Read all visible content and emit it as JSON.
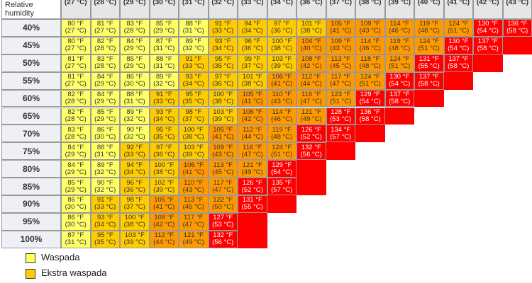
{
  "table": {
    "corner": "Relative humidity",
    "columns": [
      "(27 °C)",
      "(28 °C)",
      "(29 °C)",
      "(30 °C)",
      "(31 °C)",
      "(32 °C)",
      "(33 °C)",
      "(34 °C)",
      "(36 °C)",
      "(37 °C)",
      "(38 °C)",
      "(39 °C)",
      "(40 °C)",
      "(41 °C)",
      "(42 °C)",
      "(43 °C)"
    ],
    "color_scale": [
      {
        "min": 0,
        "color": "#ffff66",
        "text": "#333"
      },
      {
        "min": 91,
        "color": "#ffcc00",
        "text": "#333"
      },
      {
        "min": 104,
        "color": "#ff9900",
        "text": "#333"
      },
      {
        "min": 125,
        "color": "#ff0000",
        "text": "#fff"
      }
    ],
    "rows": [
      {
        "label": "40%",
        "cells": [
          [
            "80 °F",
            "(27 °C)"
          ],
          [
            "81 °F",
            "(27 °C)"
          ],
          [
            "83 °F",
            "(28 °C)"
          ],
          [
            "85 °F",
            "(29 °C)"
          ],
          [
            "88 °F",
            "(31 °C)"
          ],
          [
            "91 °F",
            "(33 °C)"
          ],
          [
            "94 °F",
            "(34 °C)"
          ],
          [
            "97 °F",
            "(36 °C)"
          ],
          [
            "101 °F",
            "(38 °C)"
          ],
          [
            "105 °F",
            "(41 °C)"
          ],
          [
            "109 °F",
            "(43 °C)"
          ],
          [
            "114 °F",
            "(46 °C)"
          ],
          [
            "119 °F",
            "(48 °C)"
          ],
          [
            "124 °F",
            "(51 °C)"
          ],
          [
            "130 °F",
            "(54 °C)"
          ],
          [
            "136 °F",
            "(58 °C)"
          ]
        ]
      },
      {
        "label": "45%",
        "cells": [
          [
            "80 °F",
            "(27 °C)"
          ],
          [
            "82 °F",
            "(28 °C)"
          ],
          [
            "84 °F",
            "(29 °C)"
          ],
          [
            "87 °F",
            "(31 °C)"
          ],
          [
            "89 °F",
            "(32 °C)"
          ],
          [
            "93 °F",
            "(34 °C)"
          ],
          [
            "96 °F",
            "(36 °C)"
          ],
          [
            "100 °F",
            "(38 °C)"
          ],
          [
            "104 °F",
            "(40 °C)"
          ],
          [
            "109 °F",
            "(43 °C)"
          ],
          [
            "114 °F",
            "(46 °C)"
          ],
          [
            "119 °F",
            "(48 °C)"
          ],
          [
            "124 °F",
            "(51 °C)"
          ],
          [
            "130 °F",
            "(54 °C)"
          ],
          [
            "137 °F",
            "(58 °C)"
          ]
        ]
      },
      {
        "label": "50%",
        "cells": [
          [
            "81 °F",
            "(27 °C)"
          ],
          [
            "83 °F",
            "(28 °C)"
          ],
          [
            "85 °F",
            "(29 °C)"
          ],
          [
            "88 °F",
            "(31 °C)"
          ],
          [
            "91 °F",
            "(33 °C)"
          ],
          [
            "95 °F",
            "(35 °C)"
          ],
          [
            "99 °F",
            "(37 °C)"
          ],
          [
            "103 °F",
            "(39 °C)"
          ],
          [
            "108 °F",
            "(42 °C)"
          ],
          [
            "113 °F",
            "(45 °C)"
          ],
          [
            "118 °F",
            "(48 °C)"
          ],
          [
            "124 °F",
            "(51 °C)"
          ],
          [
            "131 °F",
            "(55 °C)"
          ],
          [
            "137 °F",
            "(58 °C)"
          ]
        ]
      },
      {
        "label": "55%",
        "cells": [
          [
            "81 °F",
            "(27 °C)"
          ],
          [
            "84 °F",
            "(29 °C)"
          ],
          [
            "86 °F",
            "(30 °C)"
          ],
          [
            "89 °F",
            "(32 °C)"
          ],
          [
            "93 °F",
            "(34 °C)"
          ],
          [
            "97 °F",
            "(36 °C)"
          ],
          [
            "101 °F",
            "(38 °C)"
          ],
          [
            "106 °F",
            "(41 °C)"
          ],
          [
            "112 °F",
            "(44 °C)"
          ],
          [
            "117 °F",
            "(47 °C)"
          ],
          [
            "124 °F",
            "(51 °C)"
          ],
          [
            "130 °F",
            "(54 °C)"
          ],
          [
            "137 °F",
            "(58 °C)"
          ]
        ]
      },
      {
        "label": "60%",
        "cells": [
          [
            "82 °F",
            "(28 °C)"
          ],
          [
            "84 °F",
            "(29 °C)"
          ],
          [
            "88 °F",
            "(31 °C)"
          ],
          [
            "91 °F",
            "(33 °C)"
          ],
          [
            "95 °F",
            "(35 °C)"
          ],
          [
            "100 °F",
            "(38 °C)"
          ],
          [
            "105 °F",
            "(41 °C)"
          ],
          [
            "110 °F",
            "(43 °C)"
          ],
          [
            "116 °F",
            "(47 °C)"
          ],
          [
            "123 °F",
            "(51 °C)"
          ],
          [
            "129 °F",
            "(54 °C)"
          ],
          [
            "137 °F",
            "(58 °C)"
          ]
        ]
      },
      {
        "label": "65%",
        "cells": [
          [
            "82 °F",
            "(28 °C)"
          ],
          [
            "85 °F",
            "(29 °C)"
          ],
          [
            "89 °F",
            "(32 °C)"
          ],
          [
            "93 °F",
            "(34 °C)"
          ],
          [
            "98 °F",
            "(37 °C)"
          ],
          [
            "103 °F",
            "(39 °C)"
          ],
          [
            "108 °F",
            "(42 °C)"
          ],
          [
            "114 °F",
            "(46 °C)"
          ],
          [
            "121 °F",
            "(49 °C)"
          ],
          [
            "128 °F",
            "(53 °C)"
          ],
          [
            "136 °F",
            "(58 °C)"
          ]
        ]
      },
      {
        "label": "70%",
        "cells": [
          [
            "83 °F",
            "(28 °C)"
          ],
          [
            "86 °F",
            "(30 °C)"
          ],
          [
            "90 °F",
            "(32 °C)"
          ],
          [
            "95 °F",
            "(35 °C)"
          ],
          [
            "100 °F",
            "(38 °C)"
          ],
          [
            "105 °F",
            "(41 °C)"
          ],
          [
            "112 °F",
            "(44 °C)"
          ],
          [
            "119 °F",
            "(48 °C)"
          ],
          [
            "126 °F",
            "(52 °C)"
          ],
          [
            "134 °F",
            "(57 °C)"
          ]
        ]
      },
      {
        "label": "75%",
        "cells": [
          [
            "84 °F",
            "(29 °C)"
          ],
          [
            "88 °F",
            "(31 °C)"
          ],
          [
            "92 °F",
            "(33 °C)"
          ],
          [
            "97 °F",
            "(36 °C)"
          ],
          [
            "103 °F",
            "(39 °C)"
          ],
          [
            "109 °F",
            "(43 °C)"
          ],
          [
            "116 °F",
            "(47 °C)"
          ],
          [
            "124 °F",
            "(51 °C)"
          ],
          [
            "132 °F",
            "(56 °C)"
          ]
        ]
      },
      {
        "label": "80%",
        "cells": [
          [
            "84 °F",
            "(29 °C)"
          ],
          [
            "89 °F",
            "(32 °C)"
          ],
          [
            "94 °F",
            "(34 °C)"
          ],
          [
            "100 °F",
            "(38 °C)"
          ],
          [
            "106 °F",
            "(41 °C)"
          ],
          [
            "113 °F",
            "(45 °C)"
          ],
          [
            "121 °F",
            "(49 °C)"
          ],
          [
            "129 °F",
            "(54 °C)"
          ]
        ]
      },
      {
        "label": "85%",
        "cells": [
          [
            "85 °F",
            "(29 °C)"
          ],
          [
            "90 °F",
            "(32 °C)"
          ],
          [
            "96 °F",
            "(36 °C)"
          ],
          [
            "102 °F",
            "(39 °C)"
          ],
          [
            "110 °F",
            "(43 °C)"
          ],
          [
            "117 °F",
            "(47 °C)"
          ],
          [
            "126 °F",
            "(52 °C)"
          ],
          [
            "135 °F",
            "(57 °C)"
          ]
        ]
      },
      {
        "label": "90%",
        "cells": [
          [
            "86 °F",
            "(30 °C)"
          ],
          [
            "91 °F",
            "(33 °C)"
          ],
          [
            "98 °F",
            "(37 °C)"
          ],
          [
            "105 °F",
            "(41 °C)"
          ],
          [
            "113 °F",
            "(45 °C)"
          ],
          [
            "122 °F",
            "(50 °C)"
          ],
          [
            "131 °F",
            "(55 °C)"
          ]
        ]
      },
      {
        "label": "95%",
        "cells": [
          [
            "86 °F",
            "(30 °C)"
          ],
          [
            "93 °F",
            "(34 °C)"
          ],
          [
            "100 °F",
            "(38 °C)"
          ],
          [
            "108 °F",
            "(42 °C)"
          ],
          [
            "117 °F",
            "(47 °C)"
          ],
          [
            "127 °F",
            "(53 °C)"
          ]
        ]
      },
      {
        "label": "100%",
        "cells": [
          [
            "87 °F",
            "(31 °C)"
          ],
          [
            "95 °F",
            "(35 °C)"
          ],
          [
            "103 °F",
            "(39 °C)"
          ],
          [
            "112 °F",
            "(44 °C)"
          ],
          [
            "121 °F",
            "(49 °C)"
          ],
          [
            "132 °F",
            "(56 °C)"
          ]
        ]
      }
    ]
  },
  "legend": [
    {
      "label": "Waspada",
      "color": "#ffff66"
    },
    {
      "label": "Ekstra waspada",
      "color": "#ffcc00"
    }
  ]
}
